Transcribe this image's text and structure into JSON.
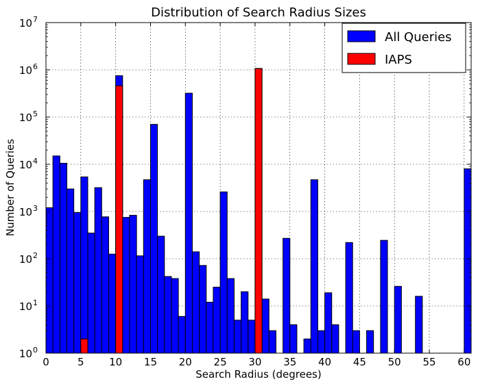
{
  "chart_data": {
    "type": "bar",
    "title": "Distribution of Search Radius Sizes",
    "xlabel": "Search Radius (degrees)",
    "ylabel": "Number of Queries",
    "xlim": [
      0,
      61
    ],
    "ylim": [
      1,
      10000000
    ],
    "yscale": "log",
    "bin_width": 1,
    "grid": true,
    "legend_position": "top-right",
    "x_ticks": [
      "0",
      "5",
      "10",
      "15",
      "20",
      "25",
      "30",
      "35",
      "40",
      "45",
      "50",
      "55",
      "60"
    ],
    "y_ticks": [
      {
        "base": "10",
        "exp": "0"
      },
      {
        "base": "10",
        "exp": "1"
      },
      {
        "base": "10",
        "exp": "2"
      },
      {
        "base": "10",
        "exp": "3"
      },
      {
        "base": "10",
        "exp": "4"
      },
      {
        "base": "10",
        "exp": "5"
      },
      {
        "base": "10",
        "exp": "6"
      },
      {
        "base": "10",
        "exp": "7"
      }
    ],
    "series": [
      {
        "name": "All Queries",
        "color": "#0000ff",
        "bins": [
          [
            0,
            1200
          ],
          [
            1,
            15000
          ],
          [
            2,
            10500
          ],
          [
            3,
            3000
          ],
          [
            4,
            950
          ],
          [
            5,
            5400
          ],
          [
            6,
            350
          ],
          [
            7,
            3200
          ],
          [
            8,
            770
          ],
          [
            9,
            125
          ],
          [
            10,
            750000
          ],
          [
            11,
            750
          ],
          [
            12,
            830
          ],
          [
            13,
            115
          ],
          [
            14,
            4700
          ],
          [
            15,
            70000
          ],
          [
            16,
            300
          ],
          [
            17,
            42
          ],
          [
            18,
            38
          ],
          [
            19,
            6
          ],
          [
            20,
            320000
          ],
          [
            21,
            140
          ],
          [
            22,
            72
          ],
          [
            23,
            12
          ],
          [
            24,
            25
          ],
          [
            25,
            2600
          ],
          [
            26,
            38
          ],
          [
            27,
            5
          ],
          [
            28,
            20
          ],
          [
            29,
            5
          ],
          [
            30,
            1070000
          ],
          [
            31,
            14
          ],
          [
            32,
            3
          ],
          [
            34,
            270
          ],
          [
            35,
            4
          ],
          [
            37,
            2
          ],
          [
            38,
            4700
          ],
          [
            39,
            3
          ],
          [
            40,
            19
          ],
          [
            41,
            4
          ],
          [
            43,
            220
          ],
          [
            44,
            3
          ],
          [
            46,
            3
          ],
          [
            48,
            245
          ],
          [
            50,
            26
          ],
          [
            53,
            16
          ],
          [
            60,
            8000
          ]
        ]
      },
      {
        "name": "IAPS",
        "color": "#ff0000",
        "bins": [
          [
            5,
            2
          ],
          [
            10,
            460000
          ],
          [
            30,
            1060000
          ]
        ]
      }
    ]
  }
}
